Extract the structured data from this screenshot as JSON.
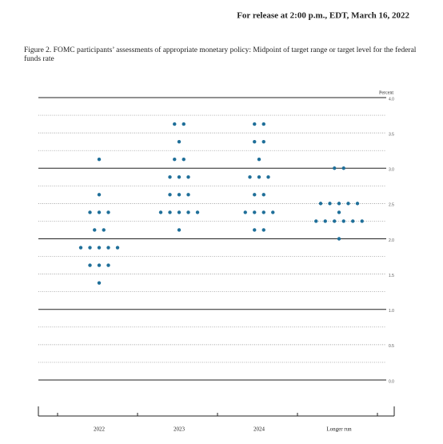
{
  "header": "For release at 2:00 p.m., EDT, March 16, 2022",
  "chart_data": {
    "type": "dot",
    "title": "Figure 2.  FOMC participants’ assessments of appropriate monetary policy:  Midpoint of target range or target level for the federal funds rate",
    "y_label": "Percent",
    "color": "#1f6f99",
    "categories": [
      "2022",
      "2023",
      "2024",
      "Longer run"
    ],
    "dots": [
      [
        3.125,
        2.625,
        2.375,
        2.375,
        2.375,
        2.125,
        2.125,
        1.875,
        1.875,
        1.875,
        1.875,
        1.875,
        1.625,
        1.625,
        1.625,
        1.375
      ],
      [
        3.625,
        3.625,
        3.375,
        3.125,
        3.125,
        2.875,
        2.875,
        2.875,
        2.625,
        2.625,
        2.625,
        2.375,
        2.375,
        2.375,
        2.375,
        2.375,
        2.125
      ],
      [
        3.625,
        3.625,
        3.375,
        3.375,
        3.125,
        2.875,
        2.875,
        2.875,
        2.625,
        2.625,
        2.375,
        2.375,
        2.375,
        2.375,
        2.125,
        2.125
      ],
      [
        3,
        3,
        2.5,
        2.5,
        2.5,
        2.5,
        2.5,
        2.375,
        2.25,
        2.25,
        2.25,
        2.25,
        2.25,
        2.25,
        2
      ]
    ],
    "ylim": [
      0,
      4
    ],
    "yticks": [
      {
        "value": 0,
        "label": "0.0"
      },
      {
        "value": 0.5,
        "label": "0.5"
      },
      {
        "value": 1,
        "label": "1.0"
      },
      {
        "value": 1.5,
        "label": "1.5"
      },
      {
        "value": 2,
        "label": "2.0"
      },
      {
        "value": 2.5,
        "label": "2.5"
      },
      {
        "value": 3,
        "label": "3.0"
      },
      {
        "value": 3.5,
        "label": "3.5"
      },
      {
        "value": 4,
        "label": "4.0"
      }
    ],
    "grid": true
  }
}
